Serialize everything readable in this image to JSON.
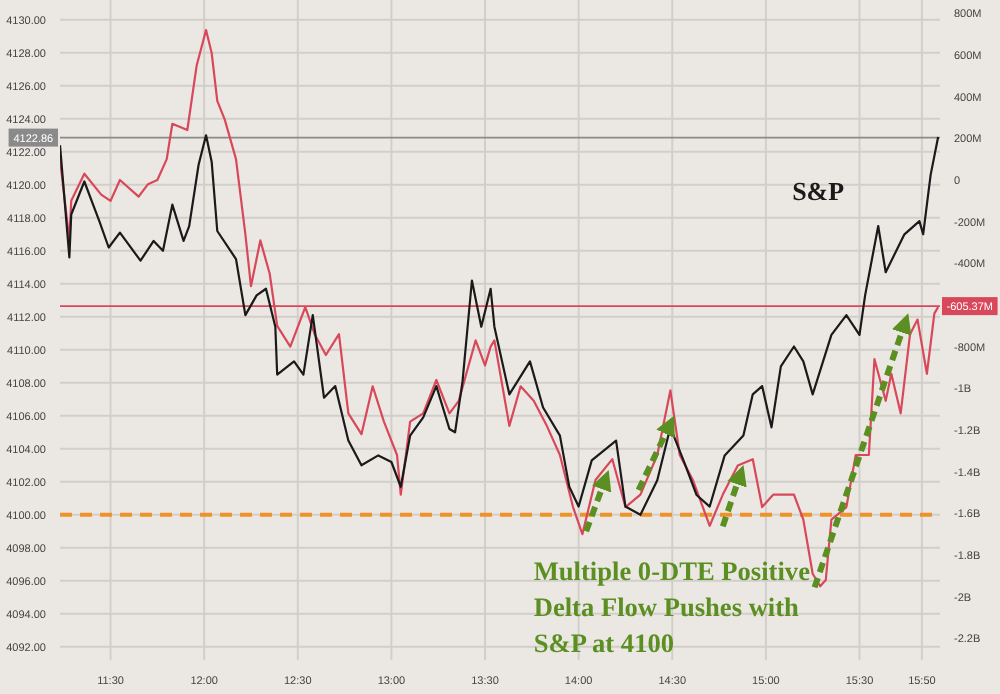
{
  "chart_data": {
    "type": "line",
    "xlim": [
      11.23,
      15.93
    ],
    "xticks": [
      {
        "value": 11.5,
        "label": "11:30"
      },
      {
        "value": 12,
        "label": "12:00"
      },
      {
        "value": 12.5,
        "label": "12:30"
      },
      {
        "value": 13,
        "label": "13:00"
      },
      {
        "value": 13.5,
        "label": "13:30"
      },
      {
        "value": 14,
        "label": "14:00"
      },
      {
        "value": 14.5,
        "label": "14:30"
      },
      {
        "value": 15,
        "label": "15:00"
      },
      {
        "value": 15.5,
        "label": "15:30"
      },
      {
        "value": 15.8333,
        "label": "15:50"
      }
    ],
    "ylim": [
      4091.2,
      4131.2
    ],
    "yticks": [
      {
        "value": 4092,
        "label": "4092.00"
      },
      {
        "value": 4094,
        "label": "4094.00"
      },
      {
        "value": 4096,
        "label": "4096.00"
      },
      {
        "value": 4098,
        "label": "4098.00"
      },
      {
        "value": 4100,
        "label": "4100.00"
      },
      {
        "value": 4102,
        "label": "4102.00"
      },
      {
        "value": 4104,
        "label": "4104.00"
      },
      {
        "value": 4106,
        "label": "4106.00"
      },
      {
        "value": 4108,
        "label": "4108.00"
      },
      {
        "value": 4110,
        "label": "4110.00"
      },
      {
        "value": 4112,
        "label": "4112.00"
      },
      {
        "value": 4114,
        "label": "4114.00"
      },
      {
        "value": 4116,
        "label": "4116.00"
      },
      {
        "value": 4118,
        "label": "4118.00"
      },
      {
        "value": 4120,
        "label": "4120.00"
      },
      {
        "value": 4122,
        "label": "4122.00"
      },
      {
        "value": 4124,
        "label": "4124.00"
      },
      {
        "value": 4126,
        "label": "4126.00"
      },
      {
        "value": 4128,
        "label": "4128.00"
      },
      {
        "value": 4130,
        "label": "4130.00"
      }
    ],
    "y2lim": [
      -2304000000.0,
      864000000.0
    ],
    "y2ticks": [
      {
        "value": -2200000000.0,
        "label": "-2.2B"
      },
      {
        "value": -2000000000.0,
        "label": "-2B"
      },
      {
        "value": -1800000000.0,
        "label": "-1.8B"
      },
      {
        "value": -1600000000.0,
        "label": "-1.6B"
      },
      {
        "value": -1400000000.0,
        "label": "-1.4B"
      },
      {
        "value": -1200000000.0,
        "label": "-1.2B"
      },
      {
        "value": -1000000000.0,
        "label": "-1B"
      },
      {
        "value": -800000000.0,
        "label": "-800M"
      },
      {
        "value": -600000000.0,
        "label": null
      },
      {
        "value": -400000000.0,
        "label": "-400M"
      },
      {
        "value": -200000000.0,
        "label": "-200M"
      },
      {
        "value": 0,
        "label": "0"
      },
      {
        "value": 200000000.0,
        "label": "200M"
      },
      {
        "value": 400000000.0,
        "label": "400M"
      },
      {
        "value": 600000000.0,
        "label": "600M"
      },
      {
        "value": 800000000.0,
        "label": "800M"
      }
    ],
    "grid": true,
    "line_style": "solid",
    "marker": "none",
    "series": [
      {
        "name": "S&P",
        "color": "#1a1a1a",
        "x": [
          11.23,
          11.28,
          11.29,
          11.36,
          11.44,
          11.49,
          11.55,
          11.66,
          11.73,
          11.78,
          11.83,
          11.89,
          11.92,
          11.97,
          12.01,
          12.04,
          12.07,
          12.17,
          12.22,
          12.28,
          12.33,
          12.38,
          12.39,
          12.48,
          12.53,
          12.58,
          12.64,
          12.7,
          12.77,
          12.84,
          12.93,
          13.0,
          13.05,
          13.1,
          13.17,
          13.24,
          13.31,
          13.34,
          13.38,
          13.43,
          13.48,
          13.53,
          13.55,
          13.63,
          13.74,
          13.81,
          13.9,
          13.95,
          14.0,
          14.07,
          14.2,
          14.25,
          14.33,
          14.42,
          14.49,
          14.56,
          14.63,
          14.7,
          14.78,
          14.88,
          14.93,
          14.98,
          15.03,
          15.08,
          15.15,
          15.2,
          15.25,
          15.35,
          15.43,
          15.5,
          15.53,
          15.6,
          15.64,
          15.74,
          15.82,
          15.84,
          15.88,
          15.92
        ],
        "values": [
          4122.4,
          4115.6,
          4118.2,
          4120.2,
          4117.8,
          4116.2,
          4117.1,
          4115.4,
          4116.6,
          4116.0,
          4118.8,
          4116.6,
          4117.5,
          4121.2,
          4123.0,
          4121.4,
          4117.2,
          4115.5,
          4112.1,
          4113.3,
          4113.7,
          4111.4,
          4108.5,
          4109.3,
          4108.5,
          4112.1,
          4107.1,
          4107.8,
          4104.5,
          4103.0,
          4103.6,
          4103.2,
          4101.7,
          4104.8,
          4105.9,
          4107.8,
          4105.2,
          4105.0,
          4108.1,
          4114.2,
          4111.4,
          4113.7,
          4111.4,
          4107.3,
          4109.3,
          4106.5,
          4104.8,
          4101.7,
          4100.5,
          4103.3,
          4104.5,
          4100.5,
          4100.0,
          4102.1,
          4105.3,
          4103.3,
          4101.2,
          4100.5,
          4103.6,
          4104.8,
          4107.3,
          4107.8,
          4105.3,
          4109.0,
          4110.2,
          4109.3,
          4107.3,
          4110.9,
          4112.1,
          4110.9,
          4113.3,
          4117.5,
          4114.7,
          4117.0,
          4117.8,
          4117.0,
          4120.6,
          4122.9
        ]
      },
      {
        "color": "#d9485a",
        "axis": "y2",
        "x": [
          11.23,
          11.28,
          11.29,
          11.36,
          11.45,
          11.5,
          11.55,
          11.65,
          11.7,
          11.75,
          11.8,
          11.83,
          11.91,
          11.96,
          12.01,
          12.04,
          12.07,
          12.11,
          12.17,
          12.22,
          12.25,
          12.3,
          12.35,
          12.39,
          12.46,
          12.54,
          12.59,
          12.65,
          12.72,
          12.77,
          12.84,
          12.9,
          12.96,
          13.03,
          13.05,
          13.1,
          13.17,
          13.24,
          13.31,
          13.36,
          13.4,
          13.45,
          13.5,
          13.53,
          13.55,
          13.63,
          13.69,
          13.76,
          13.83,
          13.9,
          13.97,
          14.02,
          14.09,
          14.18,
          14.25,
          14.33,
          14.42,
          14.49,
          14.54,
          14.61,
          14.7,
          14.77,
          14.85,
          14.93,
          14.98,
          15.04,
          15.15,
          15.2,
          15.25,
          15.29,
          15.32,
          15.35,
          15.43,
          15.48,
          15.55,
          15.58,
          15.64,
          15.67,
          15.72,
          15.77,
          15.81,
          15.86,
          15.9,
          15.92
        ],
        "values": [
          100000000.0,
          -290000000.0,
          -100000000.0,
          30000000.0,
          -70000000.0,
          -100000000.0,
          0,
          -80000000.0,
          -20000000.0,
          0,
          100000000.0,
          270000000.0,
          240000000.0,
          550000000.0,
          720000000.0,
          610000000.0,
          380000000.0,
          290000000.0,
          100000000.0,
          -260000000.0,
          -510000000.0,
          -290000000.0,
          -450000000.0,
          -700000000.0,
          -800000000.0,
          -610000000.0,
          -740000000.0,
          -840000000.0,
          -740000000.0,
          -1120000000.0,
          -1220000000.0,
          -990000000.0,
          -1160000000.0,
          -1320000000.0,
          -1510000000.0,
          -1160000000.0,
          -1120000000.0,
          -960000000.0,
          -1120000000.0,
          -1060000000.0,
          -930000000.0,
          -770000000.0,
          -890000000.0,
          -800000000.0,
          -770000000.0,
          -1180000000.0,
          -990000000.0,
          -1060000000.0,
          -1180000000.0,
          -1320000000.0,
          -1570000000.0,
          -1700000000.0,
          -1440000000.0,
          -1340000000.0,
          -1570000000.0,
          -1510000000.0,
          -1320000000.0,
          -1010000000.0,
          -1320000000.0,
          -1440000000.0,
          -1660000000.0,
          -1510000000.0,
          -1370000000.0,
          -1340000000.0,
          -1570000000.0,
          -1510000000.0,
          -1510000000.0,
          -1630000000.0,
          -1890000000.0,
          -1950000000.0,
          -1920000000.0,
          -1630000000.0,
          -1570000000.0,
          -1320000000.0,
          -1320000000.0,
          -860000000.0,
          -1060000000.0,
          -930000000.0,
          -1120000000.0,
          -740000000.0,
          -670000000.0,
          -930000000.0,
          -640000000.0,
          -610000000.0
        ]
      }
    ],
    "ref_lines": [
      {
        "axis": "y",
        "value": 4100,
        "color": "#f0922a",
        "line_style": "dashed"
      },
      {
        "axis": "y",
        "value": 4122.86,
        "label": "4122.86",
        "color": "#8a8a8a",
        "line_style": "solid"
      },
      {
        "axis": "y2",
        "value": -605370000.0,
        "label": "-605.37M",
        "color": "#d9485a",
        "line_style": "solid"
      }
    ],
    "annotations": [
      {
        "text": "Multiple 0-DTE Positive Delta Flow Pushes with S&P at 4100",
        "x": 14.04,
        "y": 4099
      }
    ]
  }
}
